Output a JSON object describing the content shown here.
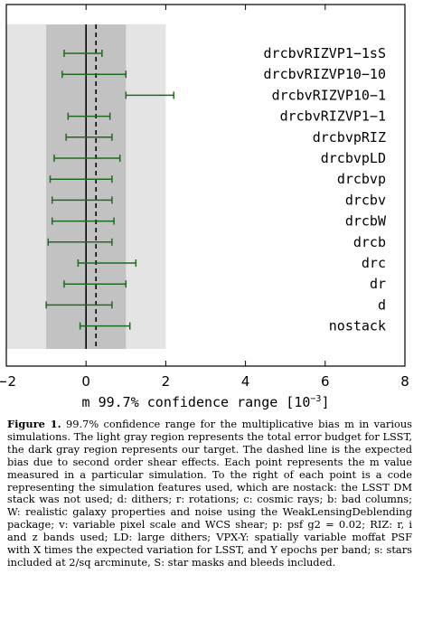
{
  "chart_data": {
    "type": "errorbar",
    "title": "",
    "xlabel": "m 99.7% confidence range [10^-3]",
    "xlabel_prefix": "m 99.7% confidence range [10",
    "xlabel_exp": "−3",
    "xlabel_suffix": "]",
    "xlim": [
      -2,
      8
    ],
    "xticks": [
      -2,
      0,
      2,
      4,
      6,
      8
    ],
    "xtick_labels": [
      "−2",
      "0",
      "2",
      "4",
      "6",
      "8"
    ],
    "light_region": [
      -2,
      2
    ],
    "dark_region": [
      -1,
      1
    ],
    "solid_line_x": 0,
    "dashed_line_x": 0.25,
    "colors": {
      "light": "#e4e4e4",
      "dark": "#c2c2c2",
      "errorbar": "#1d6b1d"
    },
    "points": [
      {
        "label": "drcbvRIZVP1−1sS",
        "low": -0.55,
        "high": 0.4
      },
      {
        "label": "drcbvRIZVP10−10",
        "low": -0.6,
        "high": 1.0
      },
      {
        "label": "drcbvRIZVP10−1",
        "low": 1.0,
        "high": 2.2
      },
      {
        "label": "drcbvRIZVP1−1",
        "low": -0.45,
        "high": 0.6
      },
      {
        "label": "drcbvpRIZ",
        "low": -0.5,
        "high": 0.65
      },
      {
        "label": "drcbvpLD",
        "low": -0.8,
        "high": 0.85
      },
      {
        "label": "drcbvp",
        "low": -0.9,
        "high": 0.65
      },
      {
        "label": "drcbv",
        "low": -0.85,
        "high": 0.65
      },
      {
        "label": "drcbW",
        "low": -0.85,
        "high": 0.7
      },
      {
        "label": "drcb",
        "low": -0.95,
        "high": 0.65
      },
      {
        "label": "drc",
        "low": -0.2,
        "high": 1.25
      },
      {
        "label": "dr",
        "low": -0.55,
        "high": 1.0
      },
      {
        "label": "d",
        "low": -1.0,
        "high": 0.65
      },
      {
        "label": "nostack",
        "low": -0.15,
        "high": 1.1
      }
    ]
  },
  "caption": {
    "figure_label": "Figure 1.",
    "text": "99.7% confidence range for the multiplicative bias m in various simulations. The light gray region represents the total error budget for LSST, the dark gray region represents our target. The dashed line is the expected bias due to second order shear effects. Each point represents the m value measured in a particular simulation. To the right of each point is a code representing the simulation features used, which are nostack: the LSST DM stack was not used; d: dithers; r: rotations; c: cosmic rays; b: bad columns; W: realistic galaxy properties and noise using the WeakLensingDeblending package; v: variable pixel scale and WCS shear; p: psf g2 = 0.02; RIZ: r, i and z bands used; LD: large dithers; VPX-Y: spatially variable moffat PSF with X times the expected variation for LSST, and Y epochs per band; s: stars included at 2/sq arcminute, S: star masks and bleeds included."
  }
}
